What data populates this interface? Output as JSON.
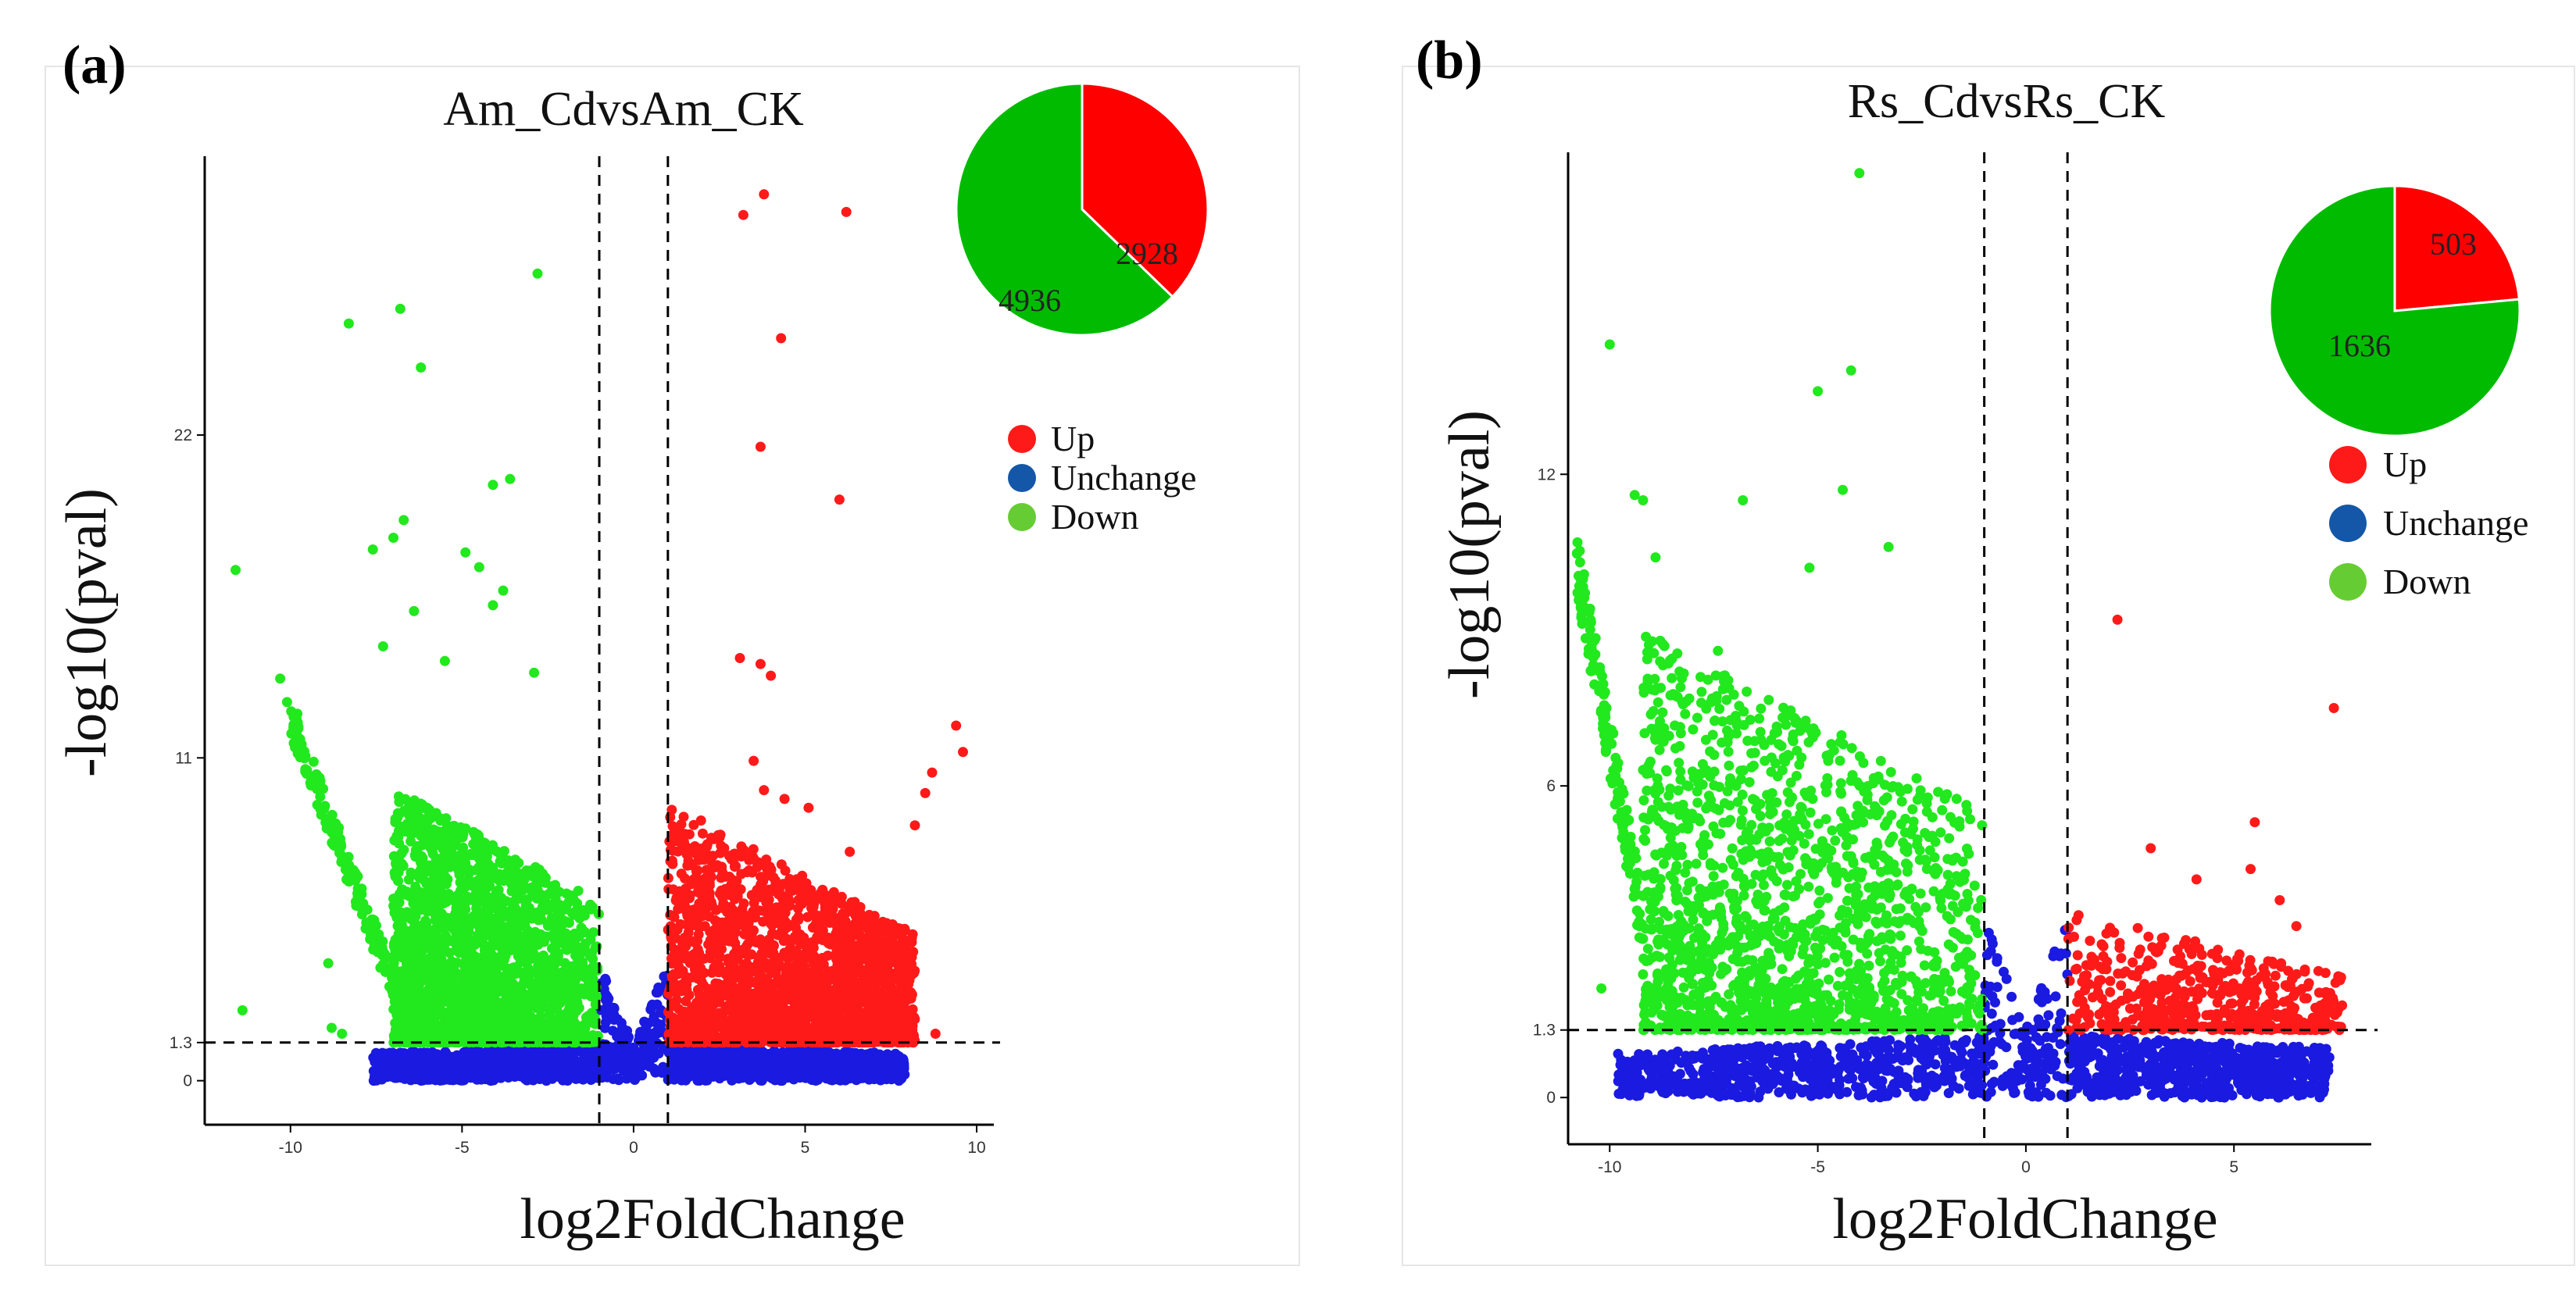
{
  "colors": {
    "up": "#ff1a1a",
    "unchange": "#1a1ae0",
    "down": "#22e81e",
    "legend_up": "#ff1a1a",
    "legend_unchange": "#1457a8",
    "legend_down": "#66cc33",
    "pie_up": "#ff0000",
    "pie_down": "#00bb00"
  },
  "chart_data": [
    {
      "type": "scatter",
      "panel_label": "(a)",
      "title": "Am_CdvsAm_CK",
      "xlabel": "log2FoldChange",
      "ylabel": "-log10(pval)",
      "xlim": [
        -12.5,
        10.5
      ],
      "ylim": [
        -1.5,
        31.5
      ],
      "xticks": [
        -10,
        -5,
        0,
        5,
        10
      ],
      "xtick_labels": [
        "-10",
        "-5",
        "0",
        "5",
        "10"
      ],
      "yticks": [
        0,
        1.3,
        11,
        22
      ],
      "ytick_labels": [
        "0",
        "1.3",
        "11",
        "22"
      ],
      "thresholds": {
        "log2fc": [
          -1,
          1
        ],
        "neglog10p": 1.3
      },
      "legend": [
        "Up",
        "Unchange",
        "Down"
      ],
      "pie": {
        "slices": [
          {
            "label": "2928",
            "value": 2928,
            "class": "up"
          },
          {
            "label": "4936",
            "value": 4936,
            "class": "down"
          }
        ]
      },
      "outliers": {
        "up": [
          [
            3.2,
            29.5
          ],
          [
            3.8,
            30.2
          ],
          [
            6.2,
            29.6
          ],
          [
            4.3,
            25.3
          ],
          [
            3.7,
            21.6
          ],
          [
            6.0,
            19.8
          ],
          [
            3.1,
            14.4
          ],
          [
            3.7,
            14.2
          ],
          [
            4.0,
            13.8
          ],
          [
            3.5,
            10.9
          ],
          [
            9.4,
            12.1
          ],
          [
            9.6,
            11.2
          ],
          [
            8.7,
            10.5
          ],
          [
            8.5,
            9.8
          ],
          [
            8.2,
            8.7
          ],
          [
            3.8,
            9.9
          ],
          [
            4.4,
            9.6
          ],
          [
            5.1,
            9.3
          ],
          [
            6.3,
            7.8
          ],
          [
            8.8,
            1.6
          ]
        ],
        "down": [
          [
            -2.8,
            27.5
          ],
          [
            -8.3,
            25.8
          ],
          [
            -6.8,
            26.3
          ],
          [
            -6.2,
            24.3
          ],
          [
            -11.6,
            17.4
          ],
          [
            -10.3,
            13.7
          ],
          [
            -10.1,
            12.9
          ],
          [
            -9.8,
            12.5
          ],
          [
            -7.6,
            18.1
          ],
          [
            -7.0,
            18.5
          ],
          [
            -6.7,
            19.1
          ],
          [
            -4.1,
            20.3
          ],
          [
            -3.6,
            20.5
          ],
          [
            -4.9,
            18.0
          ],
          [
            -4.5,
            17.5
          ],
          [
            -3.8,
            16.7
          ],
          [
            -4.1,
            16.2
          ],
          [
            -6.4,
            16.0
          ],
          [
            -2.9,
            13.9
          ],
          [
            -7.3,
            14.8
          ],
          [
            -5.5,
            14.3
          ],
          [
            -8.9,
            4.0
          ],
          [
            -11.4,
            2.4
          ],
          [
            -8.8,
            1.8
          ],
          [
            -8.5,
            1.6
          ]
        ]
      }
    },
    {
      "type": "scatter",
      "panel_label": "(b)",
      "title": "Rs_CdvsRs_CK",
      "xlabel": "log2FoldChange",
      "ylabel": "-log10(pval)",
      "xlim": [
        -11.0,
        8.3
      ],
      "ylim": [
        -0.9,
        18.2
      ],
      "xticks": [
        -10,
        -5,
        0,
        5
      ],
      "xtick_labels": [
        "-10",
        "-5",
        "0",
        "5"
      ],
      "yticks": [
        0,
        1.3,
        6,
        12
      ],
      "ytick_labels": [
        "0",
        "1.3",
        "6",
        "12"
      ],
      "thresholds": {
        "log2fc": [
          -1,
          1
        ],
        "neglog10p": 1.3
      },
      "legend": [
        "Up",
        "Unchange",
        "Down"
      ],
      "pie": {
        "slices": [
          {
            "label": "503",
            "value": 503,
            "class": "up"
          },
          {
            "label": "1636",
            "value": 1636,
            "class": "down"
          }
        ]
      },
      "outliers": {
        "up": [
          [
            2.2,
            9.2
          ],
          [
            7.4,
            7.5
          ],
          [
            5.5,
            5.3
          ],
          [
            5.4,
            4.4
          ],
          [
            6.1,
            3.8
          ],
          [
            6.5,
            3.3
          ],
          [
            7.2,
            2.4
          ],
          [
            6.8,
            2.2
          ],
          [
            3.0,
            4.8
          ],
          [
            4.1,
            4.2
          ]
        ],
        "down": [
          [
            -4.0,
            17.8
          ],
          [
            -10.0,
            14.5
          ],
          [
            -4.2,
            14.0
          ],
          [
            -5.0,
            13.6
          ],
          [
            -4.4,
            11.7
          ],
          [
            -3.3,
            10.6
          ],
          [
            -9.4,
            11.6
          ],
          [
            -9.2,
            11.5
          ],
          [
            -8.9,
            10.4
          ],
          [
            -5.2,
            10.2
          ],
          [
            -6.8,
            11.5
          ],
          [
            -10.2,
            2.1
          ],
          [
            -7.4,
            8.6
          ],
          [
            -7.8,
            7.6
          ]
        ]
      }
    }
  ]
}
